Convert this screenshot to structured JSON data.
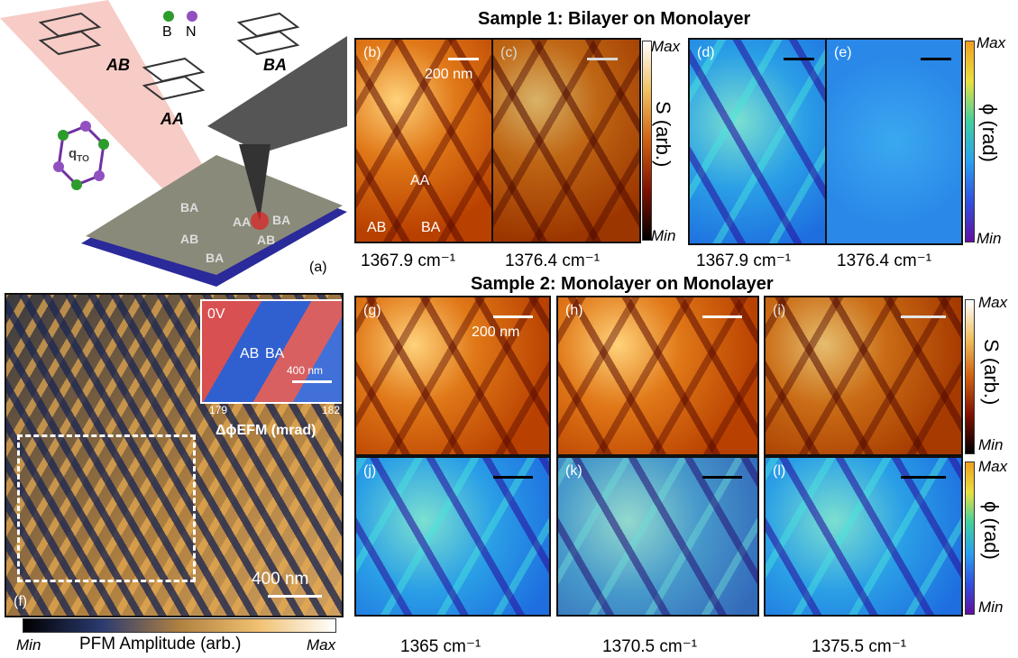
{
  "panel_a": {
    "stack_labels": [
      "AB",
      "AA",
      "BA"
    ],
    "atoms": [
      "B",
      "N"
    ],
    "q": "q",
    "q_sub": "TO",
    "lattice_labels": [
      "BA",
      "AA",
      "BA",
      "AB",
      "AB",
      "BA"
    ],
    "tag": "(a)"
  },
  "sample1": {
    "title": "Sample 1: Bilayer on Monolayer",
    "panels": [
      {
        "tag": "(b)",
        "scale": "200 nm",
        "domains": [
          "AA",
          "AB",
          "BA"
        ]
      },
      {
        "tag": "(c)"
      },
      {
        "tag": "(d)"
      },
      {
        "tag": "(e)"
      }
    ],
    "wavenumbers": [
      "1367.9 cm⁻¹",
      "1376.4 cm⁻¹",
      "1367.9 cm⁻¹",
      "1376.4 cm⁻¹"
    ],
    "colorbars": [
      {
        "max": "Max",
        "min": "Min",
        "label": "S (arb.)"
      },
      {
        "max": "Max",
        "min": "Min",
        "label": "ϕ (rad)"
      }
    ]
  },
  "sample2": {
    "title": "Sample 2: Monolayer on Monolayer",
    "panels": [
      {
        "tag": "(g)",
        "scale": "200 nm"
      },
      {
        "tag": "(h)"
      },
      {
        "tag": "(i)"
      },
      {
        "tag": "(j)"
      },
      {
        "tag": "(k)"
      },
      {
        "tag": "(l)"
      }
    ],
    "wavenumbers": [
      "1365 cm⁻¹",
      "1370.5 cm⁻¹",
      "1375.5 cm⁻¹"
    ],
    "colorbars": [
      {
        "max": "Max",
        "min": "Min",
        "label": "S (arb.)"
      },
      {
        "max": "Max",
        "min": "Min",
        "label": "ϕ (rad)"
      }
    ]
  },
  "panel_f": {
    "tag": "(f)",
    "scale": "400 nm",
    "inset": {
      "voltage": "0V",
      "domains": [
        "AB",
        "BA"
      ],
      "scale": "400 nm",
      "range_min": "179",
      "range_max": "182",
      "label": "ΔϕEFM (mrad)"
    },
    "colorbar": {
      "min": "Min",
      "label": "PFM Amplitude (arb.)",
      "max": "Max"
    }
  }
}
